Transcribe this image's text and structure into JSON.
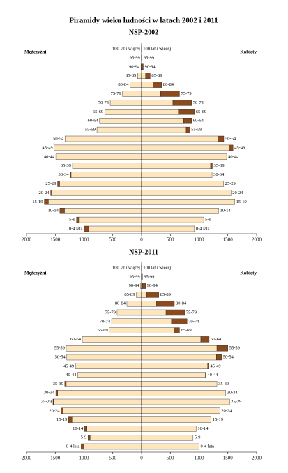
{
  "title": "Piramidy wieku ludności w latach 2002 i 2011",
  "chart_data": [
    {
      "type": "pyramid",
      "title": "NSP-2002",
      "left_label": "Mężczyźni",
      "right_label": "Kobiety",
      "categories": [
        "100 lat i więcej",
        "95-99",
        "90-94",
        "85-89",
        "80-84",
        "75-79",
        "70-74",
        "65-69",
        "60-64",
        "55-59",
        "50-54",
        "45-49",
        "40-44",
        "35-39",
        "30-34",
        "25-29",
        "20-24",
        "15-19",
        "10-14",
        "5-9",
        "0-4 lata"
      ],
      "xlim": [
        0,
        2000
      ],
      "xticks": [
        0,
        500,
        1000,
        1500,
        2000
      ],
      "series": [
        {
          "side": "left",
          "color": "#fde6bd",
          "values": [
            1,
            3,
            10,
            70,
            200,
            330,
            545,
            640,
            730,
            775,
            1330,
            1520,
            1480,
            1200,
            1225,
            1425,
            1555,
            1620,
            1340,
            1080,
            920
          ]
        },
        {
          "side": "left",
          "color": "#8b4a1c",
          "values": [
            0,
            0,
            0,
            0,
            0,
            0,
            0,
            0,
            0,
            0,
            0,
            0,
            10,
            0,
            15,
            35,
            25,
            70,
            80,
            50,
            80
          ]
        },
        {
          "side": "right",
          "color": "#fde6bd",
          "values": [
            1,
            3,
            10,
            70,
            200,
            330,
            545,
            640,
            730,
            775,
            1330,
            1520,
            1480,
            1200,
            1225,
            1425,
            1555,
            1620,
            1340,
            1080,
            920
          ]
        },
        {
          "side": "right",
          "color": "#8b4a1c",
          "values": [
            2,
            7,
            20,
            80,
            150,
            330,
            325,
            280,
            140,
            65,
            100,
            70,
            0,
            30,
            0,
            0,
            0,
            0,
            0,
            0,
            0
          ]
        }
      ]
    },
    {
      "type": "pyramid",
      "title": "NSP-2011",
      "left_label": "Mężczyźni",
      "right_label": "Kobiety",
      "categories": [
        "100 lat i więcej",
        "95-99",
        "90-94",
        "85-89",
        "80-84",
        "75-79",
        "70-74",
        "65-69",
        "60-64",
        "55-59",
        "50-54",
        "45-49",
        "40-44",
        "35-39",
        "30-34",
        "25-29",
        "20-24",
        "15-19",
        "10-14",
        "5-9",
        "0-4 lata"
      ],
      "xlim": [
        0,
        2000
      ],
      "xticks": [
        0,
        500,
        1000,
        1500,
        2000
      ],
      "series": [
        {
          "side": "left",
          "color": "#fde6bd",
          "values": [
            1,
            4,
            15,
            90,
            255,
            425,
            520,
            560,
            1030,
            1310,
            1300,
            1150,
            1110,
            1310,
            1460,
            1530,
            1360,
            1210,
            950,
            895,
            1000
          ]
        },
        {
          "side": "left",
          "color": "#8b4a1c",
          "values": [
            0,
            0,
            0,
            0,
            0,
            0,
            0,
            0,
            0,
            0,
            0,
            0,
            0,
            25,
            30,
            10,
            40,
            60,
            40,
            35,
            50
          ]
        },
        {
          "side": "right",
          "color": "#fde6bd",
          "values": [
            1,
            4,
            15,
            90,
            255,
            425,
            520,
            560,
            1030,
            1310,
            1300,
            1150,
            1110,
            1310,
            1460,
            1530,
            1360,
            1210,
            950,
            895,
            1000
          ]
        },
        {
          "side": "right",
          "color": "#8b4a1c",
          "values": [
            3,
            11,
            55,
            210,
            315,
            325,
            270,
            100,
            145,
            190,
            90,
            20,
            10,
            0,
            0,
            0,
            0,
            0,
            0,
            0,
            0
          ]
        }
      ]
    }
  ]
}
